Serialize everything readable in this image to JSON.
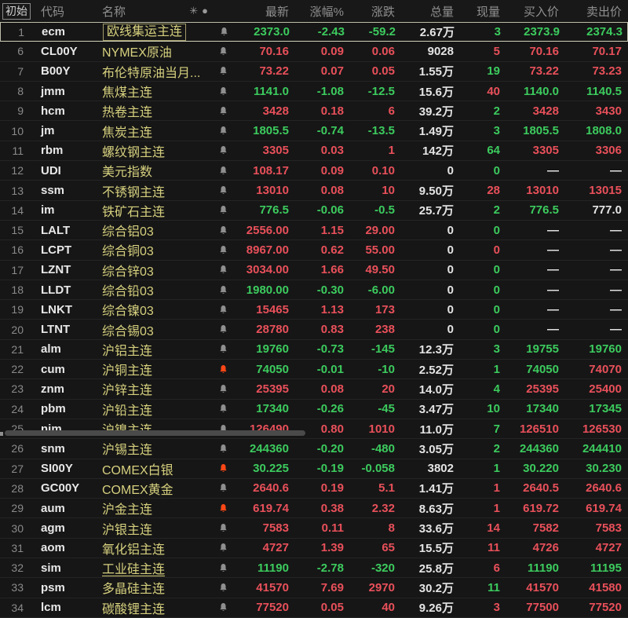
{
  "header": {
    "pin_label": "初始",
    "columns": {
      "code": "代码",
      "name": "名称",
      "latest": "最新",
      "pct": "涨幅%",
      "chg": "涨跌",
      "vol": "总量",
      "cur": "现量",
      "bid": "买入价",
      "ask": "卖出价"
    },
    "icons": {
      "asterisk": "✳",
      "dot": "●"
    }
  },
  "colors": {
    "up": "#e8505a",
    "down": "#3ccb5e",
    "name": "#d6d07e",
    "bell_alert": "#ff4716",
    "background": "#161616"
  },
  "rows": [
    {
      "n": "1",
      "code": "ecm",
      "name": "欧线集运主连",
      "bell": "gray",
      "v": "2373.0",
      "pct": "-2.43",
      "chg": "-59.2",
      "vol": "2.67万",
      "cur": "3",
      "bid": "2373.9",
      "ask": "2374.3",
      "t": "d",
      "cc": "d",
      "bc": "d",
      "ac": "d",
      "sel": true
    },
    {
      "n": "6",
      "code": "CL00Y",
      "name": "NYMEX原油",
      "bell": "gray",
      "v": "70.16",
      "pct": "0.09",
      "chg": "0.06",
      "vol": "9028",
      "cur": "5",
      "bid": "70.16",
      "ask": "70.17",
      "t": "u",
      "cc": "u",
      "bc": "u",
      "ac": "u"
    },
    {
      "n": "7",
      "code": "B00Y",
      "name": "布伦特原油当月...",
      "bell": "gray",
      "v": "73.22",
      "pct": "0.07",
      "chg": "0.05",
      "vol": "1.55万",
      "cur": "19",
      "bid": "73.22",
      "ask": "73.23",
      "t": "u",
      "cc": "d",
      "bc": "u",
      "ac": "u"
    },
    {
      "n": "8",
      "code": "jmm",
      "name": "焦煤主连",
      "bell": "gray",
      "v": "1141.0",
      "pct": "-1.08",
      "chg": "-12.5",
      "vol": "15.6万",
      "cur": "40",
      "bid": "1140.0",
      "ask": "1140.5",
      "t": "d",
      "cc": "u",
      "bc": "d",
      "ac": "d"
    },
    {
      "n": "9",
      "code": "hcm",
      "name": "热卷主连",
      "bell": "gray",
      "v": "3428",
      "pct": "0.18",
      "chg": "6",
      "vol": "39.2万",
      "cur": "2",
      "bid": "3428",
      "ask": "3430",
      "t": "u",
      "cc": "d",
      "bc": "u",
      "ac": "u"
    },
    {
      "n": "10",
      "code": "jm",
      "name": "焦炭主连",
      "bell": "gray",
      "v": "1805.5",
      "pct": "-0.74",
      "chg": "-13.5",
      "vol": "1.49万",
      "cur": "3",
      "bid": "1805.5",
      "ask": "1808.0",
      "t": "d",
      "cc": "d",
      "bc": "d",
      "ac": "d"
    },
    {
      "n": "11",
      "code": "rbm",
      "name": "螺纹钢主连",
      "bell": "gray",
      "v": "3305",
      "pct": "0.03",
      "chg": "1",
      "vol": "142万",
      "cur": "64",
      "bid": "3305",
      "ask": "3306",
      "t": "u",
      "cc": "d",
      "bc": "u",
      "ac": "u"
    },
    {
      "n": "12",
      "code": "UDI",
      "name": "美元指数",
      "bell": "gray",
      "v": "108.17",
      "pct": "0.09",
      "chg": "0.10",
      "vol": "0",
      "cur": "0",
      "bid": "—",
      "ask": "—",
      "t": "u",
      "cc": "d",
      "bc": "w",
      "ac": "w"
    },
    {
      "n": "13",
      "code": "ssm",
      "name": "不锈钢主连",
      "bell": "gray",
      "v": "13010",
      "pct": "0.08",
      "chg": "10",
      "vol": "9.50万",
      "cur": "28",
      "bid": "13010",
      "ask": "13015",
      "t": "u",
      "cc": "u",
      "bc": "u",
      "ac": "u"
    },
    {
      "n": "14",
      "code": "im",
      "name": "铁矿石主连",
      "bell": "gray",
      "v": "776.5",
      "pct": "-0.06",
      "chg": "-0.5",
      "vol": "25.7万",
      "cur": "2",
      "bid": "776.5",
      "ask": "777.0",
      "t": "d",
      "cc": "d",
      "bc": "d",
      "ac": "w"
    },
    {
      "n": "15",
      "code": "LALT",
      "name": "综合铝03",
      "bell": "gray",
      "v": "2556.00",
      "pct": "1.15",
      "chg": "29.00",
      "vol": "0",
      "cur": "0",
      "bid": "—",
      "ask": "—",
      "t": "u",
      "cc": "d",
      "bc": "w",
      "ac": "w"
    },
    {
      "n": "16",
      "code": "LCPT",
      "name": "综合铜03",
      "bell": "gray",
      "v": "8967.00",
      "pct": "0.62",
      "chg": "55.00",
      "vol": "0",
      "cur": "0",
      "bid": "—",
      "ask": "—",
      "t": "u",
      "cc": "u",
      "bc": "w",
      "ac": "w"
    },
    {
      "n": "17",
      "code": "LZNT",
      "name": "综合锌03",
      "bell": "gray",
      "v": "3034.00",
      "pct": "1.66",
      "chg": "49.50",
      "vol": "0",
      "cur": "0",
      "bid": "—",
      "ask": "—",
      "t": "u",
      "cc": "d",
      "bc": "w",
      "ac": "w"
    },
    {
      "n": "18",
      "code": "LLDT",
      "name": "综合铅03",
      "bell": "gray",
      "v": "1980.00",
      "pct": "-0.30",
      "chg": "-6.00",
      "vol": "0",
      "cur": "0",
      "bid": "—",
      "ask": "—",
      "t": "d",
      "cc": "d",
      "bc": "w",
      "ac": "w"
    },
    {
      "n": "19",
      "code": "LNKT",
      "name": "综合镍03",
      "bell": "gray",
      "v": "15465",
      "pct": "1.13",
      "chg": "173",
      "vol": "0",
      "cur": "0",
      "bid": "—",
      "ask": "—",
      "t": "u",
      "cc": "d",
      "bc": "w",
      "ac": "w"
    },
    {
      "n": "20",
      "code": "LTNT",
      "name": "综合锡03",
      "bell": "gray",
      "v": "28780",
      "pct": "0.83",
      "chg": "238",
      "vol": "0",
      "cur": "0",
      "bid": "—",
      "ask": "—",
      "t": "u",
      "cc": "d",
      "bc": "w",
      "ac": "w"
    },
    {
      "n": "21",
      "code": "alm",
      "name": "沪铝主连",
      "bell": "gray",
      "v": "19760",
      "pct": "-0.73",
      "chg": "-145",
      "vol": "12.3万",
      "cur": "3",
      "bid": "19755",
      "ask": "19760",
      "t": "d",
      "cc": "d",
      "bc": "d",
      "ac": "d"
    },
    {
      "n": "22",
      "code": "cum",
      "name": "沪铜主连",
      "bell": "alert",
      "v": "74050",
      "pct": "-0.01",
      "chg": "-10",
      "vol": "2.52万",
      "cur": "1",
      "bid": "74050",
      "ask": "74070",
      "t": "d",
      "cc": "d",
      "bc": "d",
      "ac": "u"
    },
    {
      "n": "23",
      "code": "znm",
      "name": "沪锌主连",
      "bell": "gray",
      "v": "25395",
      "pct": "0.08",
      "chg": "20",
      "vol": "14.0万",
      "cur": "4",
      "bid": "25395",
      "ask": "25400",
      "t": "u",
      "cc": "d",
      "bc": "u",
      "ac": "u"
    },
    {
      "n": "24",
      "code": "pbm",
      "name": "沪铅主连",
      "bell": "gray",
      "v": "17340",
      "pct": "-0.26",
      "chg": "-45",
      "vol": "3.47万",
      "cur": "10",
      "bid": "17340",
      "ask": "17345",
      "t": "d",
      "cc": "d",
      "bc": "d",
      "ac": "d"
    },
    {
      "n": "25",
      "code": "nim",
      "name": "沪镍主连",
      "bell": "gray",
      "v": "126490",
      "pct": "0.80",
      "chg": "1010",
      "vol": "11.0万",
      "cur": "7",
      "bid": "126510",
      "ask": "126530",
      "t": "u",
      "cc": "d",
      "bc": "u",
      "ac": "u"
    },
    {
      "n": "26",
      "code": "snm",
      "name": "沪锡主连",
      "bell": "gray",
      "v": "244360",
      "pct": "-0.20",
      "chg": "-480",
      "vol": "3.05万",
      "cur": "2",
      "bid": "244360",
      "ask": "244410",
      "t": "d",
      "cc": "d",
      "bc": "d",
      "ac": "d"
    },
    {
      "n": "27",
      "code": "SI00Y",
      "name": "COMEX白银",
      "bell": "alert",
      "v": "30.225",
      "pct": "-0.19",
      "chg": "-0.058",
      "vol": "3802",
      "cur": "1",
      "bid": "30.220",
      "ask": "30.230",
      "t": "d",
      "cc": "d",
      "bc": "d",
      "ac": "d"
    },
    {
      "n": "28",
      "code": "GC00Y",
      "name": "COMEX黄金",
      "bell": "gray",
      "v": "2640.6",
      "pct": "0.19",
      "chg": "5.1",
      "vol": "1.41万",
      "cur": "1",
      "bid": "2640.5",
      "ask": "2640.6",
      "t": "u",
      "cc": "u",
      "bc": "u",
      "ac": "u"
    },
    {
      "n": "29",
      "code": "aum",
      "name": "沪金主连",
      "bell": "alert",
      "v": "619.74",
      "pct": "0.38",
      "chg": "2.32",
      "vol": "8.63万",
      "cur": "1",
      "bid": "619.72",
      "ask": "619.74",
      "t": "u",
      "cc": "u",
      "bc": "u",
      "ac": "u"
    },
    {
      "n": "30",
      "code": "agm",
      "name": "沪银主连",
      "bell": "gray",
      "v": "7583",
      "pct": "0.11",
      "chg": "8",
      "vol": "33.6万",
      "cur": "14",
      "bid": "7582",
      "ask": "7583",
      "t": "u",
      "cc": "u",
      "bc": "u",
      "ac": "u"
    },
    {
      "n": "31",
      "code": "aom",
      "name": "氧化铝主连",
      "bell": "gray",
      "v": "4727",
      "pct": "1.39",
      "chg": "65",
      "vol": "15.5万",
      "cur": "11",
      "bid": "4726",
      "ask": "4727",
      "t": "u",
      "cc": "u",
      "bc": "u",
      "ac": "u"
    },
    {
      "n": "32",
      "code": "sim",
      "name": "工业硅主连",
      "bell": "gray",
      "v": "11190",
      "pct": "-2.78",
      "chg": "-320",
      "vol": "25.8万",
      "cur": "6",
      "bid": "11190",
      "ask": "11195",
      "t": "d",
      "cc": "u",
      "bc": "d",
      "ac": "d",
      "ul": true
    },
    {
      "n": "33",
      "code": "psm",
      "name": "多晶硅主连",
      "bell": "gray",
      "v": "41570",
      "pct": "7.69",
      "chg": "2970",
      "vol": "30.2万",
      "cur": "11",
      "bid": "41570",
      "ask": "41580",
      "t": "u",
      "cc": "d",
      "bc": "u",
      "ac": "u"
    },
    {
      "n": "34",
      "code": "lcm",
      "name": "碳酸锂主连",
      "bell": "gray",
      "v": "77520",
      "pct": "0.05",
      "chg": "40",
      "vol": "9.26万",
      "cur": "3",
      "bid": "77500",
      "ask": "77520",
      "t": "u",
      "cc": "u",
      "bc": "u",
      "ac": "u"
    }
  ]
}
